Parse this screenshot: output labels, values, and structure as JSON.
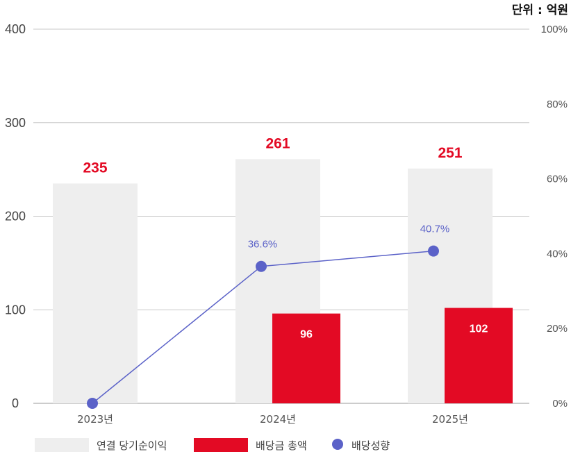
{
  "chart_data": {
    "type": "bar",
    "unit_label": "단위 : 억원",
    "categories": [
      "2023년",
      "2024년",
      "2025년"
    ],
    "ylim": [
      0,
      400
    ],
    "yticks": [
      "0",
      "100",
      "200",
      "300",
      "400"
    ],
    "y2lim": [
      0,
      100
    ],
    "y2ticks": [
      "0%",
      "20%",
      "40%",
      "60%",
      "80%",
      "100%"
    ],
    "grid": true,
    "legend_position": "bottom-left",
    "series": [
      {
        "name": "연결 당기순이익",
        "kind": "bar",
        "color": "#eeeeee",
        "values": [
          235,
          261,
          251
        ],
        "labels": [
          "235",
          "261",
          "251"
        ]
      },
      {
        "name": "배당금 총액",
        "kind": "bar",
        "color": "#e30a24",
        "values": [
          null,
          96,
          102
        ],
        "labels": [
          "",
          "96",
          "102"
        ]
      },
      {
        "name": "배당성향",
        "kind": "line",
        "axis": "right",
        "color": "#5b62c8",
        "values": [
          0,
          36.6,
          40.7
        ],
        "labels": [
          "",
          "36.6%",
          "40.7%"
        ]
      }
    ]
  }
}
